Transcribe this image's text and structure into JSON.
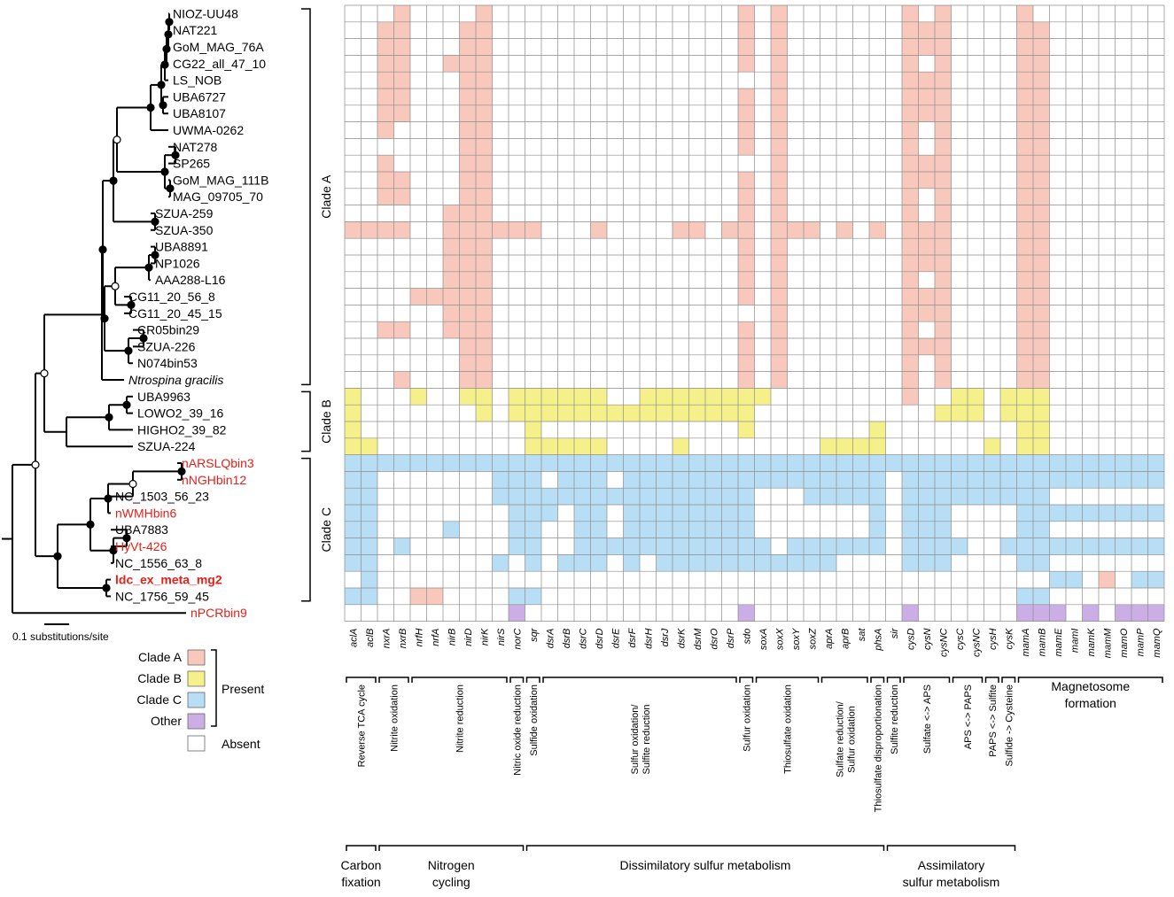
{
  "colors": {
    "clade_a": "#f8c8bd",
    "clade_b": "#f6f08a",
    "clade_c": "#b8def5",
    "other": "#ccaee6",
    "absent": "#ffffff",
    "grid": "#8c8c8c",
    "highlight": "#e8201a",
    "tree": "#000000"
  },
  "tree": {
    "scale_label": "0.1 substitutions/site",
    "taxa": [
      {
        "name": "NIOZ-UU48",
        "color": "black",
        "bold": false,
        "italic": false
      },
      {
        "name": "NAT221",
        "color": "black",
        "bold": false,
        "italic": false
      },
      {
        "name": "GoM_MAG_76A",
        "color": "black",
        "bold": false,
        "italic": false
      },
      {
        "name": "CG22_all_47_10",
        "color": "black",
        "bold": false,
        "italic": false
      },
      {
        "name": "LS_NOB",
        "color": "black",
        "bold": false,
        "italic": false
      },
      {
        "name": "UBA6727",
        "color": "black",
        "bold": false,
        "italic": false
      },
      {
        "name": "UBA8107",
        "color": "black",
        "bold": false,
        "italic": false
      },
      {
        "name": "UWMA-0262",
        "color": "black",
        "bold": false,
        "italic": false
      },
      {
        "name": "NAT278",
        "color": "black",
        "bold": false,
        "italic": false
      },
      {
        "name": "SP265",
        "color": "black",
        "bold": false,
        "italic": false
      },
      {
        "name": "GoM_MAG_111B",
        "color": "black",
        "bold": false,
        "italic": false
      },
      {
        "name": "MAG_09705_70",
        "color": "black",
        "bold": false,
        "italic": false
      },
      {
        "name": "SZUA-259",
        "color": "black",
        "bold": false,
        "italic": false
      },
      {
        "name": "SZUA-350",
        "color": "black",
        "bold": false,
        "italic": false
      },
      {
        "name": "UBA8891",
        "color": "black",
        "bold": false,
        "italic": false
      },
      {
        "name": "NP1026",
        "color": "black",
        "bold": false,
        "italic": false
      },
      {
        "name": "AAA288-L16",
        "color": "black",
        "bold": false,
        "italic": false
      },
      {
        "name": "CG11_20_56_8",
        "color": "black",
        "bold": false,
        "italic": false
      },
      {
        "name": "CG11_20_45_15",
        "color": "black",
        "bold": false,
        "italic": false
      },
      {
        "name": "CR05bin29",
        "color": "black",
        "bold": false,
        "italic": false
      },
      {
        "name": "SZUA-226",
        "color": "black",
        "bold": false,
        "italic": false
      },
      {
        "name": "N074bin53",
        "color": "black",
        "bold": false,
        "italic": false
      },
      {
        "name": "Ntrospina gracilis",
        "color": "black",
        "bold": false,
        "italic": true
      },
      {
        "name": "UBA9963",
        "color": "black",
        "bold": false,
        "italic": false
      },
      {
        "name": "LOWO2_39_16",
        "color": "black",
        "bold": false,
        "italic": false
      },
      {
        "name": "HIGHO2_39_82",
        "color": "black",
        "bold": false,
        "italic": false
      },
      {
        "name": "SZUA-224",
        "color": "black",
        "bold": false,
        "italic": false
      },
      {
        "name": "nARSLQbin3",
        "color": "red",
        "bold": false,
        "italic": false
      },
      {
        "name": "nNGHbin12",
        "color": "red",
        "bold": false,
        "italic": false
      },
      {
        "name": "NC_1503_56_23",
        "color": "black",
        "bold": false,
        "italic": false
      },
      {
        "name": "nWMHbin6",
        "color": "red",
        "bold": false,
        "italic": false
      },
      {
        "name": "UBA7883",
        "color": "black",
        "bold": false,
        "italic": false
      },
      {
        "name": "HyVt-426",
        "color": "red",
        "bold": false,
        "italic": false
      },
      {
        "name": "NC_1556_63_8",
        "color": "black",
        "bold": false,
        "italic": false
      },
      {
        "name": "ldc_ex_meta_mg2",
        "color": "red",
        "bold": true,
        "italic": false
      },
      {
        "name": "NC_1756_59_45",
        "color": "black",
        "bold": false,
        "italic": false
      },
      {
        "name": "nPCRbin9",
        "color": "red",
        "bold": false,
        "italic": false
      }
    ]
  },
  "clades": [
    {
      "label": "Clade A",
      "rows": [
        0,
        22
      ]
    },
    {
      "label": "Clade B",
      "rows": [
        23,
        26
      ]
    },
    {
      "label": "Clade C",
      "rows": [
        27,
        35
      ]
    }
  ],
  "legend": {
    "items": [
      {
        "label": "Clade A",
        "key": "clade_a"
      },
      {
        "label": "Clade B",
        "key": "clade_b"
      },
      {
        "label": "Clade C",
        "key": "clade_c"
      },
      {
        "label": "Other",
        "key": "other"
      }
    ],
    "present_label": "Present",
    "absent_label": "Absent"
  },
  "genes": [
    "aclA",
    "aclB",
    "nxrA",
    "nxrB",
    "nrfH",
    "nrfA",
    "nirB",
    "nirD",
    "nirK",
    "nirS",
    "norC",
    "sqr",
    "dsrA",
    "dsrB",
    "dsrC",
    "dsrD",
    "dsrE",
    "dsrF",
    "dsrH",
    "dsrJ",
    "dsrK",
    "dsrM",
    "dsrO",
    "dsrP",
    "sdo",
    "soxA",
    "soxX",
    "soxY",
    "soxZ",
    "aprA",
    "aprB",
    "sat",
    "phsA",
    "sir",
    "cysD",
    "cysN",
    "cysNC",
    "cysC",
    "cysNC",
    "cysH",
    "cysK",
    "mamA",
    "mamB",
    "mamE",
    "mamI",
    "mamK",
    "mamM",
    "mamO",
    "mamP",
    "mamQ"
  ],
  "roman_genes": [
    "sir"
  ],
  "functions": [
    {
      "label": "Reverse TCA cycle",
      "start": 0,
      "end": 1
    },
    {
      "label": "Nitrite oxidation",
      "start": 2,
      "end": 3
    },
    {
      "label": "Nitrite reduction",
      "start": 4,
      "end": 9
    },
    {
      "label": "Nitric oxide reduction",
      "start": 10,
      "end": 10
    },
    {
      "label": "Sulfide oxidation",
      "start": 11,
      "end": 11
    },
    {
      "label": "Sulfur oxidation/",
      "label2": "Sulfite reduction",
      "start": 12,
      "end": 23
    },
    {
      "label": "Sulfur oxidation",
      "start": 24,
      "end": 24
    },
    {
      "label": "Thiosulfate oxidation",
      "start": 25,
      "end": 28
    },
    {
      "label": "Sulfate reduction/",
      "label2": "Sulfur oxidation",
      "start": 29,
      "end": 31
    },
    {
      "label": "Thiosulfate disproportionation",
      "start": 32,
      "end": 32
    },
    {
      "label": "Sulfite reduction",
      "start": 33,
      "end": 33
    },
    {
      "label": "Sulfate <-> APS",
      "start": 34,
      "end": 36
    },
    {
      "label": "APS <-> PAPS",
      "start": 37,
      "end": 38
    },
    {
      "label": "PAPS <-> Sulfite",
      "start": 39,
      "end": 39
    },
    {
      "label": "Sulfide -> Cysteine",
      "start": 40,
      "end": 40
    },
    {
      "label": "Magnetosome",
      "label2": "formation",
      "start": 41,
      "end": 49,
      "horizontal": true
    }
  ],
  "categories": [
    {
      "label": "Carbon",
      "label2": "fixation",
      "start": 0,
      "end": 1
    },
    {
      "label": "Nitrogen",
      "label2": "cycling",
      "start": 2,
      "end": 10
    },
    {
      "label": "Dissimilatory sulfur metabolism",
      "label2": "",
      "start": 11,
      "end": 32
    },
    {
      "label": "Assimilatory",
      "label2": "sulfur metabolism",
      "start": 33,
      "end": 40
    }
  ],
  "matrix": [
    "00010000100000000000000010100000001010000100000000",
    "00110001100000000000000010100000001110000110000000",
    "00110001100000000000000010100000001110000110000000",
    "00110011100000000000000010100000001010000110000000",
    "00110001100000000000000000100000001110000110000000",
    "00110001100000000000000010100000001110000110000000",
    "00110001100000000000000010100000001110000110000000",
    "00100001100000000000000010100000001010000110000000",
    "00000001100000000000000010100000001010000110000000",
    "00100001100000000000000000100000001110000110000000",
    "00110001100000000000000010100000001110000110000000",
    "00110001100000000000000010100000001010000110000000",
    "00000011100000000000000010100000001010000110000000",
    "11110011111100010000110110111010101110000110000000",
    "00000011100000000000000010100000001110000110000000",
    "00000011100000000000000010100000001110000110000000",
    "00000011100000000000000010100000001010000110000000",
    "00001111100000000000000010100000001110000110000000",
    "00000011100000000000000000100000001110000110000000",
    "00110011100000000000000010100000001010000110000000",
    "00000001100000000000000010100000001110000110000000",
    "00000001100000000000000010100000001010000110000000",
    "00010001100000000000000010100000001010000110000000",
    "20002002202222220022222222000000001002202220000000",
    "20000000202222222222222220000000000022202220000000",
    "20000000000200000000000020000000200000000220000000",
    "22000000000222220000200000000222200000020220000000",
    "33333333333333333333333333333333333333333333333333",
    "33000000033303330333333333333333303333333333333333",
    "33000000033333333333333330003333303333333330000000",
    "33000000003330330333333330000000303330000333333333",
    "33000030003300330333333330000000303330000330000000",
    "33030000003300333333333333033333303333003333333333",
    "33000000030303330303333333333300003330000330000000",
    "03000000000000000000000000000000000000000003301033",
    "33001100003300000000000000000000000000000330000000",
    "00000000004000000000000040000000004000000444040444"
  ]
}
